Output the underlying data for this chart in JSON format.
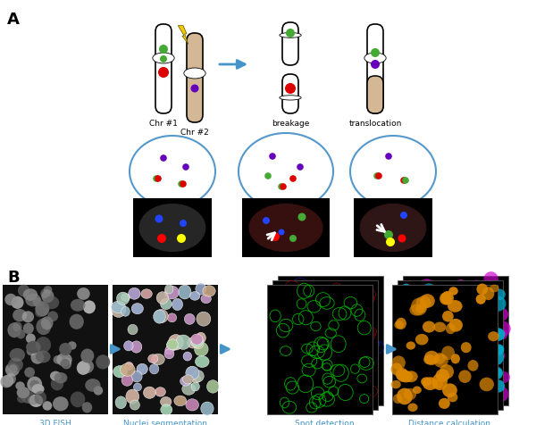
{
  "fig_width": 6.0,
  "fig_height": 4.77,
  "dpi": 100,
  "bg_color": "#ffffff",
  "panel_A_label": "A",
  "panel_B_label": "B",
  "label_fontsize": 13,
  "label_fontweight": "bold",
  "chr1_label": "Chr #1",
  "chr2_label": "Chr #2",
  "breakage_label": "breakage",
  "translocation_label": "translocation",
  "fish_label": "3D FISH",
  "nuclei_label": "Nuclei segmentation",
  "spot_label": "Spot detection",
  "distance_label": "Distance calculation",
  "label_color_cyan": "#4494c8",
  "arrow_color": "#4494c8",
  "green_dot": "#44aa33",
  "red_dot": "#dd0000",
  "purple_dot": "#6600bb",
  "blue_dot": "#2244ff",
  "lightning_yellow": "#f5c800",
  "circle_color": "#5599cc",
  "chr2_color": "#d4b896"
}
